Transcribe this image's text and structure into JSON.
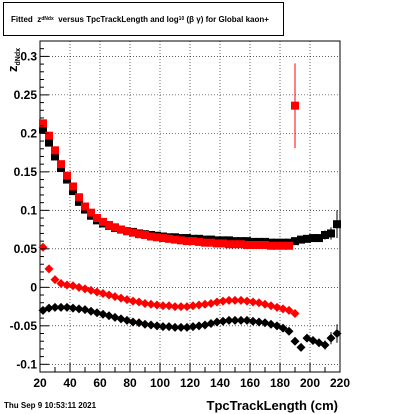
{
  "title": {
    "prefix": "Fitted",
    "z": "z",
    "z_sub": "dNdx",
    "mid": "versus TpcTrackLength and log",
    "log_sub": "10",
    "tail": "(β γ) for Global kaon+"
  },
  "footer": {
    "timestamp": "Thu Sep  9 10:53:11 2021"
  },
  "chart_data": {
    "type": "scatter",
    "title": "Fitted z_dNdx versus TpcTrackLength and log10(β γ) for Global kaon+",
    "xlabel": "TpcTrackLength (cm)",
    "ylabel": "z_dNdx",
    "xlim": [
      20,
      220
    ],
    "ylim": [
      -0.11,
      0.32
    ],
    "grid": true,
    "x_ticks": [
      20,
      40,
      60,
      80,
      100,
      120,
      140,
      160,
      180,
      200,
      220
    ],
    "y_ticks": [
      -0.1,
      -0.05,
      0,
      0.05,
      0.1,
      0.15,
      0.2,
      0.25,
      0.3
    ],
    "x_tick_labels": [
      "20",
      "40",
      "60",
      "80",
      "100",
      "120",
      "140",
      "160",
      "180",
      "200",
      "220"
    ],
    "y_tick_labels": [
      "-0.1",
      "-0.05",
      "0",
      "0.05",
      "0.1",
      "0.15",
      "0.2",
      "0.25",
      "0.3"
    ],
    "series": [
      {
        "color": "#000000",
        "marker": "square",
        "x": [
          22,
          26,
          30,
          34,
          38,
          42,
          46,
          50,
          54,
          58,
          62,
          66,
          70,
          74,
          78,
          82,
          86,
          90,
          94,
          98,
          102,
          106,
          110,
          114,
          118,
          122,
          126,
          130,
          134,
          138,
          142,
          146,
          150,
          154,
          158,
          162,
          166,
          170,
          174,
          178,
          182,
          186,
          190,
          194,
          198,
          202,
          206,
          210,
          214,
          218
        ],
        "y": [
          0.205,
          0.188,
          0.17,
          0.155,
          0.14,
          0.125,
          0.111,
          0.101,
          0.093,
          0.087,
          0.083,
          0.08,
          0.077,
          0.075,
          0.073,
          0.072,
          0.07,
          0.069,
          0.068,
          0.067,
          0.066,
          0.065,
          0.065,
          0.064,
          0.064,
          0.063,
          0.063,
          0.062,
          0.062,
          0.061,
          0.061,
          0.061,
          0.06,
          0.06,
          0.06,
          0.059,
          0.059,
          0.059,
          0.058,
          0.058,
          0.058,
          0.058,
          0.06,
          0.062,
          0.063,
          0.064,
          0.064,
          0.068,
          0.07,
          0.082
        ],
        "yerr": [
          0.003,
          0.003,
          0.002,
          0.002,
          0.002,
          0.002,
          0.002,
          0.002,
          0.001,
          0.001,
          0.001,
          0.001,
          0.001,
          0.001,
          0.001,
          0.001,
          0.001,
          0.001,
          0.001,
          0.001,
          0.001,
          0.001,
          0.001,
          0.001,
          0.001,
          0.001,
          0.001,
          0.001,
          0.001,
          0.001,
          0.001,
          0.001,
          0.001,
          0.001,
          0.001,
          0.001,
          0.001,
          0.001,
          0.001,
          0.001,
          0.002,
          0.002,
          0.002,
          0.003,
          0.003,
          0.003,
          0.004,
          0.006,
          0.008,
          0.018
        ]
      },
      {
        "color": "#ff0000",
        "marker": "square",
        "x": [
          22,
          26,
          30,
          34,
          38,
          42,
          46,
          50,
          54,
          58,
          62,
          66,
          70,
          74,
          78,
          82,
          86,
          90,
          94,
          98,
          102,
          106,
          110,
          114,
          118,
          122,
          126,
          130,
          134,
          138,
          142,
          146,
          150,
          154,
          158,
          162,
          166,
          170,
          174,
          178,
          182,
          186,
          190
        ],
        "y": [
          0.213,
          0.197,
          0.178,
          0.16,
          0.145,
          0.131,
          0.117,
          0.105,
          0.097,
          0.09,
          0.085,
          0.081,
          0.078,
          0.075,
          0.073,
          0.071,
          0.069,
          0.068,
          0.066,
          0.065,
          0.064,
          0.063,
          0.062,
          0.061,
          0.06,
          0.06,
          0.059,
          0.058,
          0.058,
          0.057,
          0.057,
          0.056,
          0.056,
          0.056,
          0.055,
          0.055,
          0.055,
          0.055,
          0.054,
          0.054,
          0.054,
          0.054,
          0.236
        ],
        "yerr": [
          0.004,
          0.003,
          0.002,
          0.002,
          0.002,
          0.002,
          0.002,
          0.002,
          0.001,
          0.001,
          0.001,
          0.001,
          0.001,
          0.001,
          0.001,
          0.001,
          0.001,
          0.001,
          0.001,
          0.001,
          0.001,
          0.001,
          0.001,
          0.001,
          0.001,
          0.001,
          0.001,
          0.001,
          0.001,
          0.001,
          0.001,
          0.001,
          0.001,
          0.001,
          0.001,
          0.001,
          0.001,
          0.001,
          0.001,
          0.001,
          0.001,
          0.002,
          0.055
        ]
      },
      {
        "color": "#000000",
        "marker": "diamond",
        "x": [
          22,
          26,
          30,
          34,
          38,
          42,
          46,
          50,
          54,
          58,
          62,
          66,
          70,
          74,
          78,
          82,
          86,
          90,
          94,
          98,
          102,
          106,
          110,
          114,
          118,
          122,
          126,
          130,
          134,
          138,
          142,
          146,
          150,
          154,
          158,
          162,
          166,
          170,
          174,
          178,
          182,
          186,
          190,
          194,
          198,
          202,
          206,
          210,
          214,
          218
        ],
        "y": [
          -0.03,
          -0.027,
          -0.026,
          -0.026,
          -0.026,
          -0.027,
          -0.028,
          -0.029,
          -0.031,
          -0.033,
          -0.035,
          -0.037,
          -0.039,
          -0.041,
          -0.043,
          -0.045,
          -0.046,
          -0.048,
          -0.049,
          -0.05,
          -0.051,
          -0.051,
          -0.052,
          -0.052,
          -0.052,
          -0.051,
          -0.05,
          -0.049,
          -0.047,
          -0.045,
          -0.044,
          -0.043,
          -0.043,
          -0.043,
          -0.043,
          -0.044,
          -0.045,
          -0.046,
          -0.048,
          -0.05,
          -0.053,
          -0.057,
          -0.07,
          -0.078,
          -0.066,
          -0.069,
          -0.072,
          -0.075,
          -0.066,
          -0.06
        ],
        "yerr": [
          0.002,
          0.001,
          0.001,
          0.001,
          0.001,
          0.001,
          0.001,
          0.001,
          0.001,
          0.001,
          0.001,
          0.001,
          0.001,
          0.001,
          0.001,
          0.001,
          0.001,
          0.001,
          0.001,
          0.001,
          0.001,
          0.001,
          0.001,
          0.001,
          0.001,
          0.001,
          0.001,
          0.001,
          0.001,
          0.001,
          0.001,
          0.001,
          0.001,
          0.001,
          0.001,
          0.001,
          0.001,
          0.001,
          0.001,
          0.001,
          0.002,
          0.002,
          0.003,
          0.003,
          0.004,
          0.004,
          0.005,
          0.006,
          0.008,
          0.012
        ]
      },
      {
        "color": "#ff0000",
        "marker": "diamond",
        "x": [
          22,
          26,
          30,
          34,
          38,
          42,
          46,
          50,
          54,
          58,
          62,
          66,
          70,
          74,
          78,
          82,
          86,
          90,
          94,
          98,
          102,
          106,
          110,
          114,
          118,
          122,
          126,
          130,
          134,
          138,
          142,
          146,
          150,
          154,
          158,
          162,
          166,
          170,
          174,
          178,
          182,
          186,
          190
        ],
        "y": [
          0.052,
          0.024,
          0.01,
          0.005,
          0.003,
          0.002,
          0.0,
          -0.002,
          -0.004,
          -0.006,
          -0.008,
          -0.01,
          -0.012,
          -0.014,
          -0.016,
          -0.018,
          -0.019,
          -0.021,
          -0.022,
          -0.023,
          -0.024,
          -0.024,
          -0.025,
          -0.025,
          -0.025,
          -0.024,
          -0.023,
          -0.022,
          -0.021,
          -0.019,
          -0.018,
          -0.017,
          -0.017,
          -0.017,
          -0.018,
          -0.019,
          -0.02,
          -0.022,
          -0.024,
          -0.026,
          -0.028,
          -0.03,
          -0.034
        ],
        "yerr": [
          0.003,
          0.002,
          0.001,
          0.001,
          0.001,
          0.001,
          0.001,
          0.001,
          0.001,
          0.001,
          0.001,
          0.001,
          0.001,
          0.001,
          0.001,
          0.001,
          0.001,
          0.001,
          0.001,
          0.001,
          0.001,
          0.001,
          0.001,
          0.001,
          0.001,
          0.001,
          0.001,
          0.001,
          0.001,
          0.001,
          0.001,
          0.001,
          0.001,
          0.001,
          0.001,
          0.001,
          0.001,
          0.001,
          0.001,
          0.001,
          0.002,
          0.002,
          0.003
        ]
      }
    ]
  }
}
